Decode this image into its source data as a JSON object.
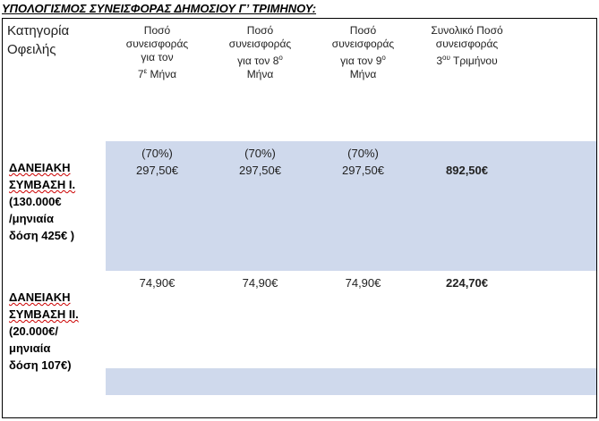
{
  "title": "ΥΠΟΛΟΓΙΣΜΟΣ ΣΥΝΕΙΣΦΟΡΑΣ ΔΗΜΟΣΙΟΥ Γ’ ΤΡΙΜΗΝΟΥ:",
  "table": {
    "headers": [
      {
        "lines": [
          "Κατηγορία",
          "Οφειλής"
        ]
      },
      {
        "lines": [
          "Ποσό",
          "συνεισφοράς",
          "για τον",
          [
            "7",
            "ε",
            " Μήνα"
          ]
        ]
      },
      {
        "lines": [
          "Ποσό",
          "συνεισφοράς",
          [
            "για τον 8",
            "ο"
          ],
          "Μήνα"
        ]
      },
      {
        "lines": [
          "Ποσό",
          "συνεισφοράς",
          [
            "για τον 9",
            "ο"
          ],
          "Μήνα"
        ]
      },
      {
        "lines": [
          "Συνολικό Ποσό",
          "συνεισφοράς",
          [
            "3",
            "ου",
            " Τριμήνου"
          ]
        ]
      }
    ],
    "rows": [
      {
        "label": [
          "ΔΑΝΕΙΑΚΗ",
          "ΣΥΜΒΑΣΗ Ι.",
          "(130.000€",
          "/μηνιαία",
          "δόση 425€ )"
        ],
        "cells": [
          {
            "note": "(70%)",
            "value": "297,50€"
          },
          {
            "note": "(70%)",
            "value": "297,50€"
          },
          {
            "note": "(70%)",
            "value": "297,50€"
          }
        ],
        "total": "892,50€"
      },
      {
        "label": [
          "ΔΑΝΕΙΑΚΗ",
          "ΣΥΜΒΑΣΗ ΙΙ.",
          "(20.000€/",
          "μηνιαία",
          "δόση 107€)"
        ],
        "cells": [
          {
            "value": "74,90€"
          },
          {
            "value": "74,90€"
          },
          {
            "value": "74,90€"
          }
        ],
        "total": "224,70€"
      }
    ]
  }
}
